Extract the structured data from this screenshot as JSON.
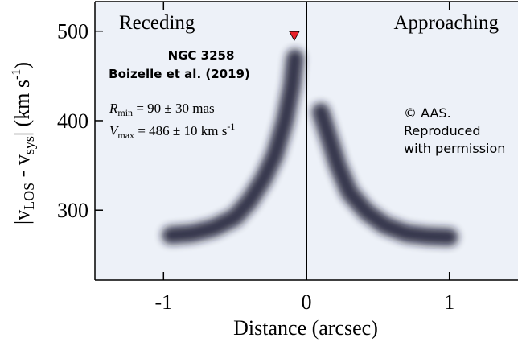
{
  "chart_data": {
    "type": "pv-diagram",
    "x_label": "Distance (arcsec)",
    "y_label": [
      {
        "text": "|v"
      },
      {
        "text": "LOS",
        "sub": true
      },
      {
        "text": " - v"
      },
      {
        "text": "sys",
        "sub": true
      },
      {
        "text": "| (km s"
      },
      {
        "text": "-1",
        "sup": true
      },
      {
        "text": ")"
      }
    ],
    "xlim": [
      -1.48,
      1.48
    ],
    "xticks": [
      -1,
      0,
      1
    ],
    "ylim": [
      222,
      533
    ],
    "yticks": [
      300,
      400,
      500
    ],
    "series": [
      {
        "name": "Receding",
        "color": "#14182f",
        "x": [
          -0.95,
          -0.8,
          -0.65,
          -0.5,
          -0.4,
          -0.3,
          -0.22,
          -0.15,
          -0.1,
          -0.08
        ],
        "values": [
          272,
          274,
          280,
          292,
          310,
          335,
          362,
          400,
          440,
          470
        ]
      },
      {
        "name": "Approaching",
        "color": "#14182f",
        "x": [
          0.1,
          0.15,
          0.22,
          0.3,
          0.42,
          0.55,
          0.7,
          0.85,
          1.0
        ],
        "values": [
          410,
          385,
          350,
          320,
          298,
          283,
          274,
          271,
          270
        ]
      }
    ],
    "marker": {
      "x": -0.085,
      "y": 495,
      "color": "#e8212a"
    },
    "zero_line": 0,
    "annotations": {
      "object": "NGC 3258",
      "reference": "Boizelle et al. (2019)",
      "rmin": {
        "symbol": "R",
        "sub": "min",
        "text": " = 90 ± 30 mas"
      },
      "vmax": {
        "symbol": "V",
        "sub": "max",
        "text": " = 486 ± 10 km s",
        "sup": "-1"
      },
      "copyright": [
        "© AAS.",
        "Reproduced",
        "with permission"
      ]
    }
  }
}
